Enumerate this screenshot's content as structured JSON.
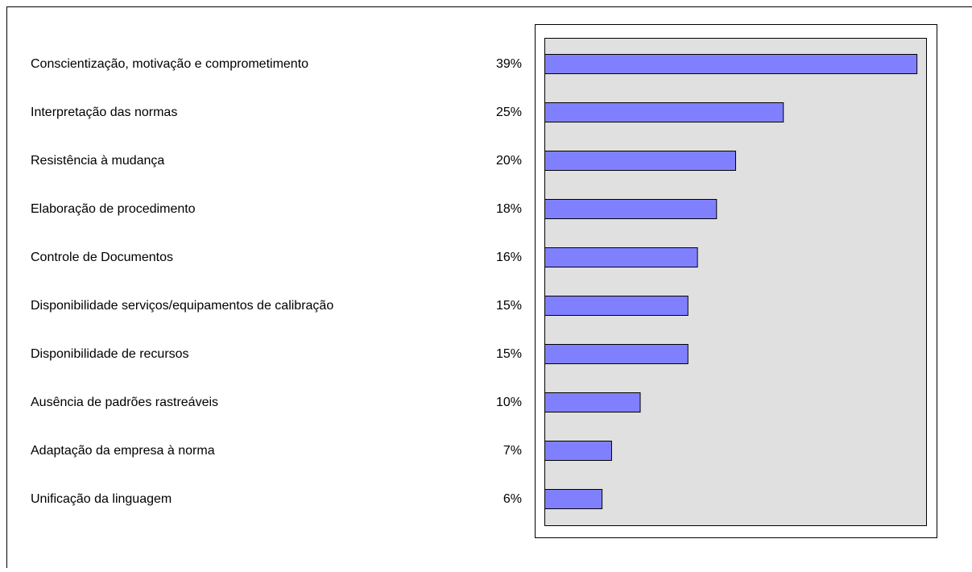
{
  "chart_data": {
    "type": "hbar",
    "categories": [
      "Conscientização, motivação e comprometimento",
      "Interpretação das normas",
      "Resistência à mudança",
      "Elaboração de procedimento",
      "Controle de Documentos",
      "Disponibilidade serviços/equipamentos de calibração",
      "Disponibilidade de recursos",
      "Ausência de padrões rastreáveis",
      "Adaptação da empresa à norma",
      "Unificação da linguagem"
    ],
    "values": [
      39,
      25,
      20,
      18,
      16,
      15,
      15,
      10,
      7,
      6
    ],
    "value_labels": [
      "39%",
      "25%",
      "20%",
      "18%",
      "16%",
      "15%",
      "15%",
      "10%",
      "7%",
      "6%"
    ],
    "color": "#8080ff",
    "xlim": [
      0,
      40
    ]
  }
}
